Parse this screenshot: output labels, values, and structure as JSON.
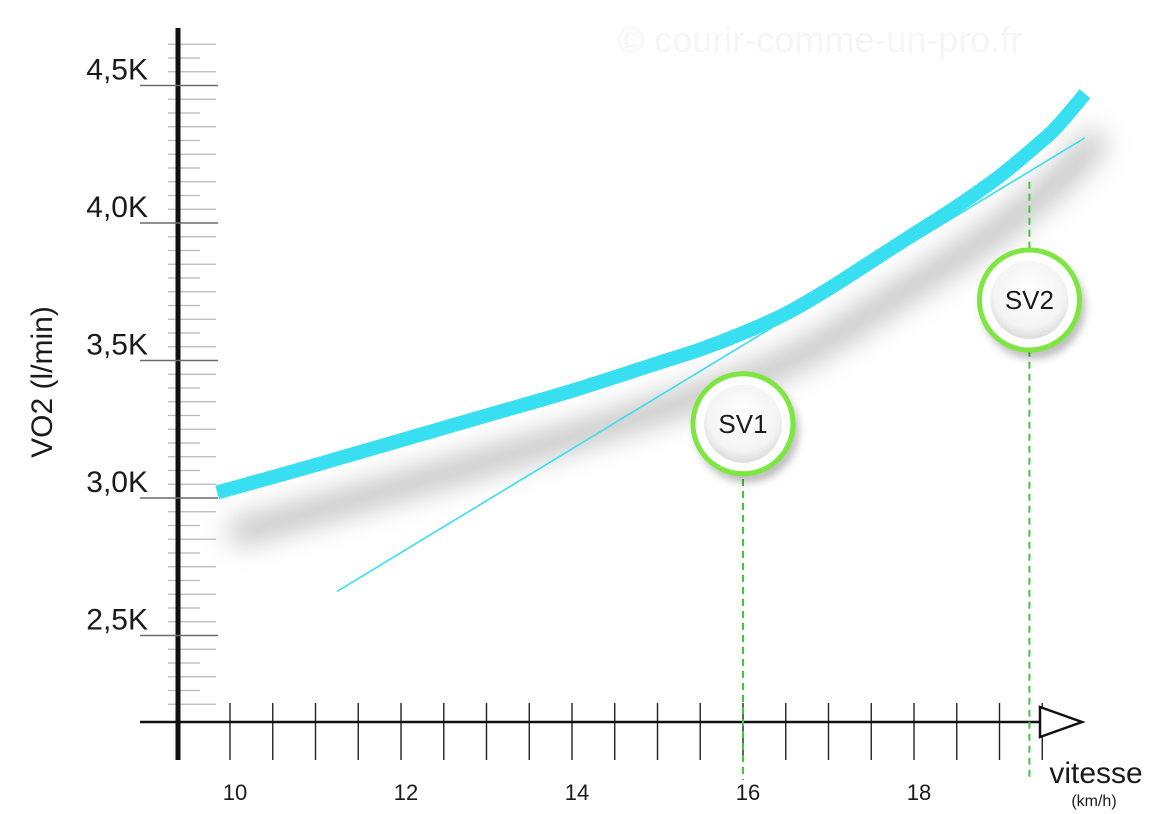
{
  "watermark": "© courir-comme-un-pro.fr",
  "chart_data": {
    "type": "line",
    "ylabel": "VO2 (l/min)",
    "xlabel": "vitesse",
    "xlabel_unit": "(km/h)",
    "xlim": [
      9.5,
      20
    ],
    "ylim": [
      2.2,
      4.7
    ],
    "x_ticks": [
      {
        "value": 10,
        "label": "10"
      },
      {
        "value": 12,
        "label": "12"
      },
      {
        "value": 14,
        "label": "14"
      },
      {
        "value": 16,
        "label": "16"
      },
      {
        "value": 18,
        "label": "18"
      }
    ],
    "y_ticks": [
      {
        "value": 2.5,
        "label": "2,5K"
      },
      {
        "value": 3.0,
        "label": "3,0K"
      },
      {
        "value": 3.5,
        "label": "3,5K"
      },
      {
        "value": 4.0,
        "label": "4,0K"
      },
      {
        "value": 4.5,
        "label": "4,5K"
      }
    ],
    "series": [
      {
        "color": "#37dff0",
        "x": [
          9.85,
          11,
          12,
          13,
          14,
          15,
          15.5,
          16,
          16.5,
          17,
          17.5,
          18,
          18.5,
          19,
          19.5,
          19.7,
          20
        ],
        "y": [
          3.02,
          3.12,
          3.21,
          3.3,
          3.39,
          3.49,
          3.54,
          3.6,
          3.67,
          3.76,
          3.86,
          3.96,
          4.06,
          4.17,
          4.3,
          4.36,
          4.47
        ]
      }
    ],
    "tangent_line": {
      "color": "#37dff0",
      "x": [
        11.25,
        20
      ],
      "y": [
        2.66,
        4.31
      ]
    },
    "thresholds": [
      {
        "label": "SV1",
        "x": 16,
        "marker_y": 3.27,
        "line_top_y": 3.2,
        "line_color": "#3ec93e",
        "ring_color": "#7ee640"
      },
      {
        "label": "SV2",
        "x": 19.35,
        "marker_y": 3.72,
        "line_top_y": 4.15,
        "line_color": "#3ec93e",
        "ring_color": "#7ee640"
      }
    ]
  }
}
